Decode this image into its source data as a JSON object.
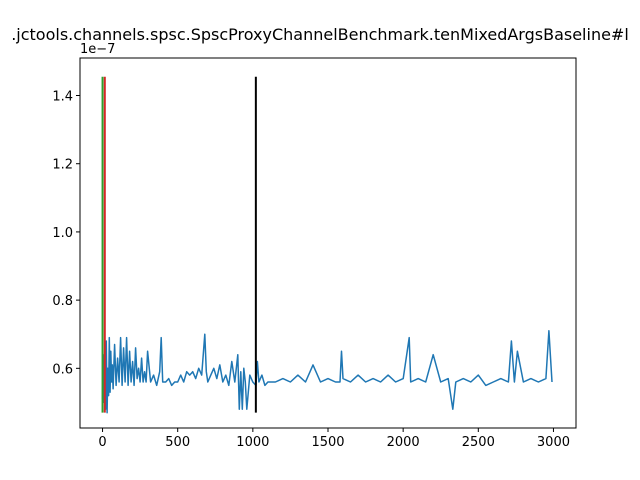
{
  "chart_data": {
    "type": "line",
    "title": ".jctools.channels.spsc.SpscProxyChannelBenchmark.tenMixedArgsBaseline#l",
    "xlabel": "",
    "ylabel": "",
    "y_offset_label": "1e−7",
    "xlim": [
      -150,
      3150
    ],
    "ylim": [
      4.25e-08,
      1.51e-07
    ],
    "x_ticks": [
      0,
      500,
      1000,
      1500,
      2000,
      2500,
      3000
    ],
    "x_tick_labels": [
      "0",
      "500",
      "1000",
      "1500",
      "2000",
      "2500",
      "3000"
    ],
    "y_ticks": [
      6e-08,
      8e-08,
      1e-07,
      1.2e-07,
      1.4e-07
    ],
    "y_tick_labels": [
      "0.6",
      "0.8",
      "1.0",
      "1.2",
      "1.4"
    ],
    "grid": false,
    "series": [
      {
        "color": "#1f77b4",
        "x": [
          0,
          5,
          10,
          15,
          20,
          25,
          30,
          35,
          40,
          45,
          50,
          55,
          60,
          65,
          70,
          80,
          90,
          100,
          110,
          120,
          130,
          140,
          150,
          160,
          170,
          180,
          190,
          200,
          210,
          220,
          230,
          240,
          250,
          260,
          270,
          280,
          290,
          300,
          320,
          340,
          360,
          380,
          390,
          400,
          420,
          440,
          460,
          480,
          500,
          520,
          540,
          560,
          580,
          600,
          620,
          640,
          660,
          680,
          690,
          700,
          720,
          740,
          760,
          780,
          800,
          820,
          840,
          860,
          880,
          900,
          910,
          920,
          930,
          940,
          950,
          960,
          980,
          1000,
          1020,
          1030,
          1040,
          1060,
          1080,
          1100,
          1150,
          1200,
          1250,
          1300,
          1350,
          1400,
          1450,
          1500,
          1550,
          1580,
          1590,
          1600,
          1650,
          1700,
          1750,
          1800,
          1850,
          1900,
          1950,
          2000,
          2040,
          2050,
          2100,
          2150,
          2200,
          2250,
          2300,
          2330,
          2350,
          2400,
          2450,
          2500,
          2550,
          2600,
          2650,
          2700,
          2720,
          2740,
          2760,
          2800,
          2850,
          2900,
          2950,
          2970,
          2990
        ],
        "y": [
          5.1e-08,
          6.4e-08,
          5e-08,
          6.6e-08,
          4.8e-08,
          6.8e-08,
          4.7e-08,
          6e-08,
          5.2e-08,
          6.9e-08,
          5.3e-08,
          6.5e-08,
          5.6e-08,
          6.1e-08,
          5.4e-08,
          6.7e-08,
          5.5e-08,
          6.3e-08,
          5.6e-08,
          6.9e-08,
          5.5e-08,
          6.6e-08,
          5.6e-08,
          6.9e-08,
          5.5e-08,
          6.5e-08,
          5.6e-08,
          6.2e-08,
          5.5e-08,
          6.6e-08,
          5.7e-08,
          6e-08,
          5.6e-08,
          6.3e-08,
          5.6e-08,
          5.9e-08,
          5.6e-08,
          6.5e-08,
          5.6e-08,
          5.8e-08,
          5.5e-08,
          5.9e-08,
          6.9e-08,
          5.6e-08,
          5.6e-08,
          5.7e-08,
          5.5e-08,
          5.6e-08,
          5.6e-08,
          5.8e-08,
          5.6e-08,
          5.9e-08,
          5.8e-08,
          5.9e-08,
          5.7e-08,
          6e-08,
          5.8e-08,
          7e-08,
          5.9e-08,
          5.6e-08,
          5.8e-08,
          6e-08,
          5.7e-08,
          6.1e-08,
          5.6e-08,
          5.8e-08,
          5.5e-08,
          6.2e-08,
          5.6e-08,
          6.4e-08,
          4.8e-08,
          5.9e-08,
          4.8e-08,
          6e-08,
          5.6e-08,
          4.8e-08,
          5.8e-08,
          5.6e-08,
          5.5e-08,
          6.2e-08,
          5.6e-08,
          5.8e-08,
          5.5e-08,
          5.6e-08,
          5.6e-08,
          5.7e-08,
          5.6e-08,
          5.8e-08,
          5.6e-08,
          6.1e-08,
          5.6e-08,
          5.7e-08,
          5.6e-08,
          5.6e-08,
          6.5e-08,
          5.7e-08,
          5.6e-08,
          5.8e-08,
          5.6e-08,
          5.7e-08,
          5.6e-08,
          5.8e-08,
          5.6e-08,
          5.7e-08,
          6.9e-08,
          5.6e-08,
          5.7e-08,
          5.6e-08,
          6.4e-08,
          5.6e-08,
          5.7e-08,
          4.8e-08,
          5.6e-08,
          5.7e-08,
          5.6e-08,
          5.8e-08,
          5.5e-08,
          5.6e-08,
          5.7e-08,
          5.6e-08,
          6.8e-08,
          5.6e-08,
          6.5e-08,
          5.6e-08,
          5.7e-08,
          5.6e-08,
          5.7e-08,
          7.1e-08,
          5.6e-08
        ]
      }
    ],
    "markers": [
      {
        "x": 0,
        "y0": 4.7e-08,
        "y1": 1.455e-07,
        "color": "#2ca02c"
      },
      {
        "x": 15,
        "y0": 4.7e-08,
        "y1": 1.455e-07,
        "color": "#d62728"
      },
      {
        "x": 1020,
        "y0": 4.7e-08,
        "y1": 1.455e-07,
        "color": "#000000"
      }
    ]
  }
}
